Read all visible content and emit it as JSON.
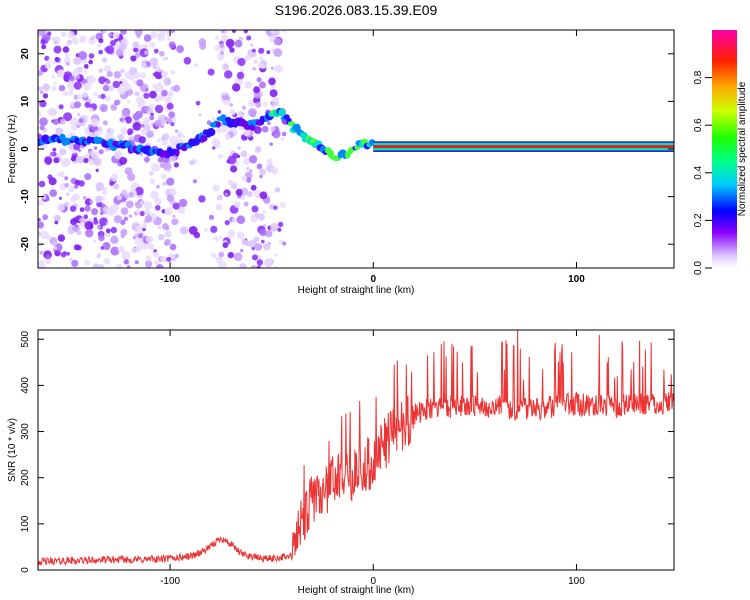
{
  "title": "S196.2026.083.15.39.E09",
  "chart_data": [
    {
      "type": "heatmap",
      "xlabel": "Height of straight line (km)",
      "ylabel": "Frequency (Hz)",
      "xlim": [
        -165,
        148
      ],
      "ylim": [
        -25,
        25
      ],
      "x_ticks": [
        -100,
        0,
        100
      ],
      "x_tick_labels": [
        "-100",
        "0",
        "100"
      ],
      "y_ticks": [
        -20,
        -10,
        0,
        10,
        20
      ],
      "y_tick_labels": [
        "-20",
        "-10",
        "0",
        "10",
        "20"
      ],
      "colorbar": {
        "label": "Normalized spectral amplitude",
        "range": [
          0,
          1
        ],
        "ticks": [
          0.0,
          0.2,
          0.4,
          0.6,
          0.8
        ],
        "tick_labels": [
          "0.0",
          "0.2",
          "0.4",
          "0.6",
          "0.8"
        ]
      },
      "ridge": {
        "x": [
          -165,
          -150,
          -140,
          -130,
          -120,
          -110,
          -100,
          -95,
          -90,
          -85,
          -80,
          -75,
          -70,
          -65,
          -60,
          -55,
          -50,
          -45,
          -40,
          -35,
          -30,
          -25,
          -20,
          -15,
          -10,
          -5,
          0,
          148
        ],
        "y": [
          1.5,
          2,
          1.5,
          1,
          0.5,
          -0.5,
          -0.8,
          0,
          1,
          2,
          4,
          6,
          5.5,
          5,
          5,
          6,
          7,
          7.5,
          5,
          2.5,
          1.5,
          0,
          -1.5,
          -1.5,
          0,
          1,
          1,
          0.5
        ]
      },
      "scatter_region_x": [
        -165,
        -45
      ]
    },
    {
      "type": "line",
      "xlabel": "Height of straight line (km)",
      "ylabel": "SNR (10 * v/v)",
      "xlim": [
        -165,
        148
      ],
      "ylim": [
        0,
        520
      ],
      "x_ticks": [
        -100,
        0,
        100
      ],
      "x_tick_labels": [
        "-100",
        "0",
        "100"
      ],
      "y_ticks": [
        0,
        100,
        200,
        300,
        400,
        500
      ],
      "y_tick_labels": [
        "0",
        "100",
        "200",
        "300",
        "400",
        "500"
      ],
      "series": [
        {
          "name": "SNR",
          "color": "#ee3333",
          "x": [
            -165,
            -150,
            -130,
            -110,
            -100,
            -90,
            -85,
            -80,
            -75,
            -70,
            -65,
            -60,
            -55,
            -50,
            -45,
            -40,
            -35,
            -30,
            -25,
            -20,
            -15,
            -10,
            -5,
            0,
            5,
            10,
            15,
            20,
            25,
            30,
            40,
            50,
            60,
            70,
            80,
            90,
            100,
            110,
            120,
            130,
            140,
            148
          ],
          "y": [
            18,
            20,
            22,
            23,
            25,
            30,
            38,
            50,
            70,
            55,
            35,
            30,
            25,
            25,
            28,
            30,
            100,
            150,
            170,
            190,
            200,
            210,
            220,
            240,
            270,
            300,
            320,
            335,
            345,
            350,
            355,
            355,
            355,
            350,
            348,
            355,
            360,
            355,
            355,
            360,
            360,
            362
          ]
        }
      ]
    }
  ]
}
